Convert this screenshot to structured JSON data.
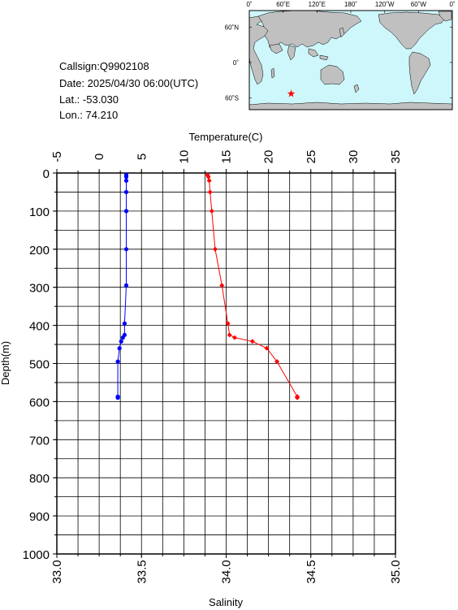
{
  "info": {
    "callsign": "Callsign:Q9902108",
    "date": "Date:  2025/04/30 06:00(UTC)",
    "lat": "Lat.:  -53.030",
    "lon": "Lon.:   74.210"
  },
  "map": {
    "top_labels": [
      "0˚",
      "60˚E",
      "120˚E",
      "180˚",
      "120˚W",
      "60˚W",
      "0˚"
    ],
    "right_labels": [
      "60˚N",
      "0˚",
      "60˚S"
    ],
    "ocean_color": "#cdf7fb",
    "land_color": "#c0c0c0",
    "marker": {
      "shape": "star",
      "color": "#ff0000",
      "lon": 74.21,
      "lat": -53.03
    }
  },
  "chart_data": {
    "type": "line",
    "top_axis_label": "Temperature(C)",
    "bottom_axis_label": "Salinity",
    "y_axis_label": "Depth(m)",
    "temperature_range": [
      -5,
      35
    ],
    "temperature_ticks": [
      "-5",
      "0",
      "5",
      "10",
      "15",
      "20",
      "25",
      "30",
      "35"
    ],
    "salinity_range": [
      33.0,
      35.0
    ],
    "salinity_ticks": [
      "33.0",
      "33.5",
      "34.0",
      "34.5",
      "35.0"
    ],
    "depth_range": [
      0,
      1000
    ],
    "depth_ticks": [
      "0",
      "100",
      "200",
      "300",
      "400",
      "500",
      "600",
      "700",
      "800",
      "900",
      "1000"
    ],
    "grid": true,
    "series": [
      {
        "variable": "temperature",
        "color": "#ff0000",
        "marker": "diamond",
        "points": [
          {
            "depth": 5,
            "value": 12.8
          },
          {
            "depth": 10,
            "value": 12.9
          },
          {
            "depth": 20,
            "value": 13.0
          },
          {
            "depth": 50,
            "value": 13.1
          },
          {
            "depth": 100,
            "value": 13.3
          },
          {
            "depth": 200,
            "value": 13.7
          },
          {
            "depth": 295,
            "value": 14.5
          },
          {
            "depth": 395,
            "value": 15.2
          },
          {
            "depth": 425,
            "value": 15.4
          },
          {
            "depth": 432,
            "value": 16.0
          },
          {
            "depth": 442,
            "value": 18.1
          },
          {
            "depth": 460,
            "value": 19.8
          },
          {
            "depth": 495,
            "value": 21.0
          },
          {
            "depth": 587,
            "value": 23.4
          },
          {
            "depth": 590,
            "value": 23.4
          }
        ]
      },
      {
        "variable": "salinity",
        "color": "#0000ff",
        "marker": "circle",
        "points": [
          {
            "depth": 5,
            "value": 33.41
          },
          {
            "depth": 10,
            "value": 33.41
          },
          {
            "depth": 20,
            "value": 33.41
          },
          {
            "depth": 50,
            "value": 33.41
          },
          {
            "depth": 100,
            "value": 33.41
          },
          {
            "depth": 200,
            "value": 33.41
          },
          {
            "depth": 295,
            "value": 33.41
          },
          {
            "depth": 395,
            "value": 33.4
          },
          {
            "depth": 425,
            "value": 33.4
          },
          {
            "depth": 432,
            "value": 33.39
          },
          {
            "depth": 442,
            "value": 33.38
          },
          {
            "depth": 460,
            "value": 33.37
          },
          {
            "depth": 495,
            "value": 33.36
          },
          {
            "depth": 587,
            "value": 33.36
          },
          {
            "depth": 590,
            "value": 33.36
          }
        ]
      }
    ]
  }
}
